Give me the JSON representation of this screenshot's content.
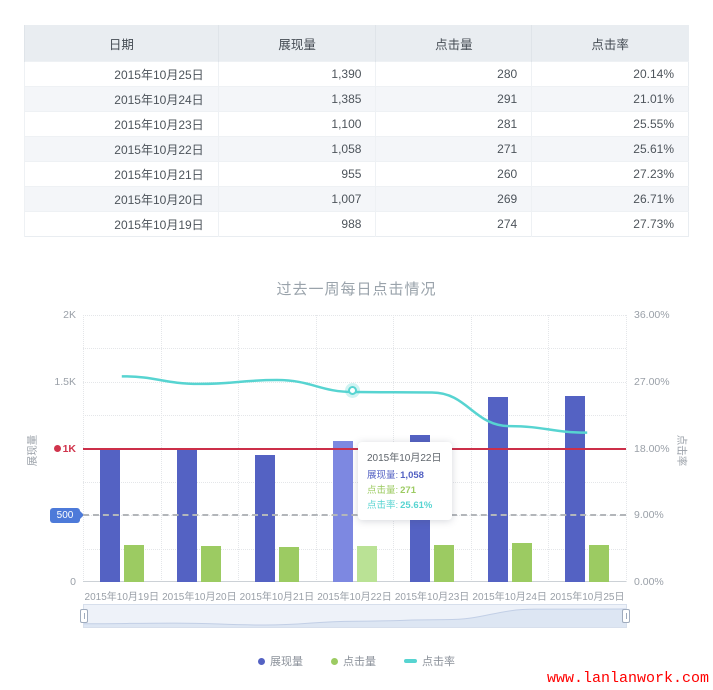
{
  "table": {
    "headers": [
      "日期",
      "展现量",
      "点击量",
      "点击率"
    ],
    "rows": [
      {
        "date": "2015年10月25日",
        "impressions": "1,390",
        "clicks": "280",
        "ctr": "20.14%"
      },
      {
        "date": "2015年10月24日",
        "impressions": "1,385",
        "clicks": "291",
        "ctr": "21.01%"
      },
      {
        "date": "2015年10月23日",
        "impressions": "1,100",
        "clicks": "281",
        "ctr": "25.55%"
      },
      {
        "date": "2015年10月22日",
        "impressions": "1,058",
        "clicks": "271",
        "ctr": "25.61%"
      },
      {
        "date": "2015年10月21日",
        "impressions": "955",
        "clicks": "260",
        "ctr": "27.23%"
      },
      {
        "date": "2015年10月20日",
        "impressions": "1,007",
        "clicks": "269",
        "ctr": "26.71%"
      },
      {
        "date": "2015年10月19日",
        "impressions": "988",
        "clicks": "274",
        "ctr": "27.73%"
      }
    ]
  },
  "chart_data": {
    "type": "bar",
    "title": "过去一周每日点击情况",
    "categories": [
      "2015年10月19日",
      "2015年10月20日",
      "2015年10月21日",
      "2015年10月22日",
      "2015年10月23日",
      "2015年10月24日",
      "2015年10月25日"
    ],
    "series": [
      {
        "name": "展现量",
        "type": "bar",
        "axis": "left",
        "color": "#5462c3",
        "highlight_color": "#7d88e1",
        "values": [
          988,
          1007,
          955,
          1058,
          1100,
          1385,
          1390
        ]
      },
      {
        "name": "点击量",
        "type": "bar",
        "axis": "left",
        "color": "#9ccb62",
        "highlight_color": "#bae295",
        "values": [
          274,
          269,
          260,
          271,
          281,
          291,
          280
        ]
      },
      {
        "name": "点击率",
        "type": "line",
        "axis": "right",
        "color": "#57d4d1",
        "values": [
          27.73,
          26.71,
          27.23,
          25.61,
          25.55,
          21.01,
          20.14
        ]
      }
    ],
    "highlight_index": 3,
    "left_axis": {
      "name": "展现量",
      "range": [
        0,
        2000
      ],
      "ticks": [
        "2K",
        "1.5K",
        "1K",
        "500",
        "0"
      ]
    },
    "right_axis": {
      "name": "点击率",
      "range": [
        0,
        36
      ],
      "ticks": [
        "36.00%",
        "27.00%",
        "18.00%",
        "9.00%",
        "0.00%"
      ]
    },
    "marklines": [
      {
        "value": 1000,
        "label": "1K",
        "style": "solid",
        "color": "#cc2f49"
      },
      {
        "value": 500,
        "label": "500",
        "style": "dashed",
        "color": "#b3b6ba",
        "label_bg": "#4d7ad9"
      }
    ],
    "legend": [
      {
        "label": "展现量",
        "color": "#5462c3",
        "symbol": "dot"
      },
      {
        "label": "点击量",
        "color": "#9ccb62",
        "symbol": "dot"
      },
      {
        "label": "点击率",
        "color": "#57d4d1",
        "symbol": "dash"
      }
    ],
    "grid": true,
    "legend_position": "bottom"
  },
  "tooltip": {
    "title": "2015年10月22日",
    "rows": [
      {
        "label": "展现量:",
        "value": "1,058",
        "color": "#5462c3"
      },
      {
        "label": "点击量:",
        "value": "271",
        "color": "#9ccb62"
      },
      {
        "label": "点击率:",
        "value": "25.61%",
        "color": "#57d4d1"
      }
    ]
  },
  "watermark": "www.lanlanwork.com"
}
